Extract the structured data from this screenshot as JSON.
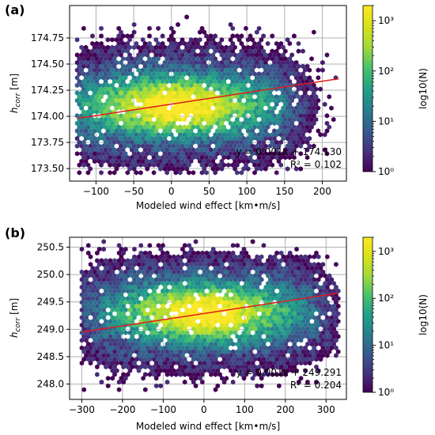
{
  "chart_data": [
    {
      "type": "hexbin-scatter",
      "panel_label": "(a)",
      "xlabel": "Modeled wind effect [km•m/s]",
      "ylabel": "h",
      "ylabel_sub": "corr",
      "ylabel_unit": " [m]",
      "xlim": [
        -135,
        232
      ],
      "ylim": [
        173.38,
        175.06
      ],
      "xticks": [
        -100,
        -50,
        0,
        50,
        100,
        150,
        200
      ],
      "xtick_labels": [
        "−100",
        "−50",
        "0",
        "50",
        "100",
        "150",
        "200"
      ],
      "yticks": [
        173.5,
        173.75,
        174.0,
        174.25,
        174.5,
        174.75
      ],
      "ytick_labels": [
        "173.50",
        "173.75",
        "174.00",
        "174.25",
        "174.50",
        "174.75"
      ],
      "grid": true,
      "fit_line": {
        "x": [
          -125,
          222
        ],
        "y": [
          173.98,
          174.36
        ],
        "color": "#e31a1c"
      },
      "annotation": {
        "equation": "y = 0.001x + 174.130",
        "r2": "R² = 0.102",
        "slope": 0.001,
        "intercept": 174.13,
        "r_squared": 0.102
      },
      "data_extent": {
        "x": [
          -125,
          222
        ],
        "y": [
          173.45,
          174.95
        ],
        "center_x": 5,
        "center_y": 174.1
      },
      "colorbar": {
        "label": "log10(N)",
        "scale": "log",
        "range": [
          1,
          2000
        ],
        "ticks": [
          1,
          10,
          100,
          1000
        ],
        "tick_labels": [
          "10⁰",
          "10¹",
          "10²",
          "10³"
        ],
        "colormap": "viridis"
      }
    },
    {
      "type": "hexbin-scatter",
      "panel_label": "(b)",
      "xlabel": "Modeled wind effect [km•m/s]",
      "ylabel": "h",
      "ylabel_sub": "corr",
      "ylabel_unit": " [m]",
      "xlim": [
        -330,
        350
      ],
      "ylim": [
        247.72,
        250.68
      ],
      "xticks": [
        -300,
        -200,
        -100,
        0,
        100,
        200,
        300
      ],
      "xtick_labels": [
        "−300",
        "−200",
        "−100",
        "0",
        "100",
        "200",
        "300"
      ],
      "yticks": [
        248.0,
        248.5,
        249.0,
        249.5,
        250.0,
        250.5
      ],
      "ytick_labels": [
        "248.0",
        "248.5",
        "249.0",
        "249.5",
        "250.0",
        "250.5"
      ],
      "grid": true,
      "fit_line": {
        "x": [
          -300,
          330
        ],
        "y": [
          248.95,
          249.66
        ],
        "color": "#e31a1c"
      },
      "annotation": {
        "equation": "y = 0.001x + 249.291",
        "r2": "R² = 0.204",
        "slope": 0.001,
        "intercept": 249.291,
        "r_squared": 0.204
      },
      "data_extent": {
        "x": [
          -300,
          330
        ],
        "y": [
          247.85,
          250.6
        ],
        "center_x": 0,
        "center_y": 249.3
      },
      "colorbar": {
        "label": "log10(N)",
        "scale": "log",
        "range": [
          1,
          2000
        ],
        "ticks": [
          1,
          10,
          100,
          1000
        ],
        "tick_labels": [
          "10⁰",
          "10¹",
          "10²",
          "10³"
        ],
        "colormap": "viridis"
      }
    }
  ]
}
